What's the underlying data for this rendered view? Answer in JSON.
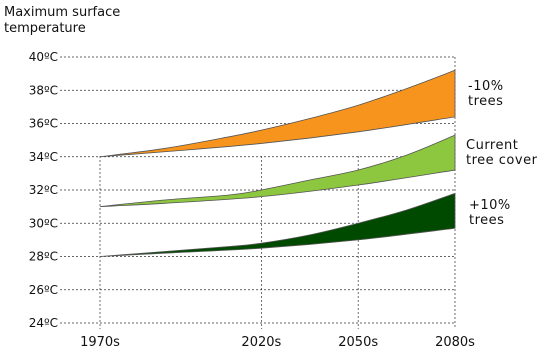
{
  "chart_data": {
    "type": "area",
    "ytitle": [
      "Maximum surface",
      "temperature"
    ],
    "categories": [
      "1970s",
      "2020s",
      "2050s",
      "2080s"
    ],
    "x": [
      1970,
      2020,
      2050,
      2080
    ],
    "yticks": [
      "24ºC",
      "26ºC",
      "28ºC",
      "30ºC",
      "32ºC",
      "34ºC",
      "36ºC",
      "38ºC",
      "40ºC"
    ],
    "ylim": [
      24,
      40
    ],
    "grid": true,
    "series": [
      {
        "name_lines": [
          "-10%",
          "trees"
        ],
        "color": "#f7941d",
        "upper": [
          [
            1970,
            34.0
          ],
          [
            1990,
            34.5
          ],
          [
            2010,
            35.2
          ],
          [
            2020,
            35.6
          ],
          [
            2035,
            36.3
          ],
          [
            2050,
            37.1
          ],
          [
            2065,
            38.1
          ],
          [
            2080,
            39.2
          ]
        ],
        "lower": [
          [
            1970,
            34.0
          ],
          [
            1990,
            34.3
          ],
          [
            2020,
            34.8
          ],
          [
            2050,
            35.5
          ],
          [
            2080,
            36.4
          ]
        ]
      },
      {
        "name_lines": [
          "Current",
          "tree cover"
        ],
        "color": "#8dc63f",
        "upper": [
          [
            1970,
            31.0
          ],
          [
            1990,
            31.4
          ],
          [
            2010,
            31.7
          ],
          [
            2020,
            32.0
          ],
          [
            2035,
            32.6
          ],
          [
            2050,
            33.2
          ],
          [
            2065,
            34.1
          ],
          [
            2080,
            35.3
          ]
        ],
        "lower": [
          [
            1970,
            31.0
          ],
          [
            1990,
            31.2
          ],
          [
            2020,
            31.6
          ],
          [
            2050,
            32.3
          ],
          [
            2080,
            33.2
          ]
        ]
      },
      {
        "name_lines": [
          "+10%",
          "trees"
        ],
        "color": "#004a00",
        "upper": [
          [
            1970,
            28.0
          ],
          [
            1990,
            28.3
          ],
          [
            2010,
            28.6
          ],
          [
            2020,
            28.8
          ],
          [
            2035,
            29.3
          ],
          [
            2050,
            30.0
          ],
          [
            2065,
            30.8
          ],
          [
            2080,
            31.8
          ]
        ],
        "lower": [
          [
            1970,
            28.0
          ],
          [
            1990,
            28.2
          ],
          [
            2020,
            28.5
          ],
          [
            2050,
            29.0
          ],
          [
            2080,
            29.7
          ]
        ]
      }
    ]
  }
}
